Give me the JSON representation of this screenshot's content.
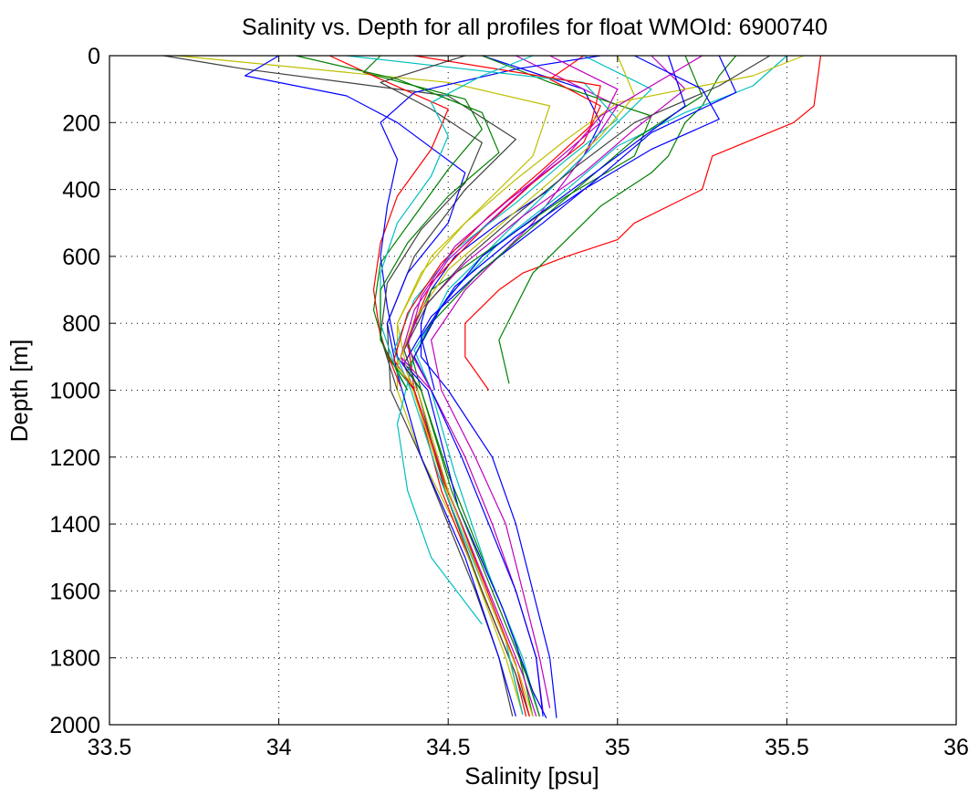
{
  "chart_data": {
    "type": "line",
    "title": "Salinity vs. Depth for all profiles for float WMOId: 6900740",
    "xlabel": "Salinity [psu]",
    "ylabel": "Depth [m]",
    "xlim": [
      33.5,
      36
    ],
    "ylim": [
      0,
      2000
    ],
    "y_reversed": true,
    "grid": true,
    "x_ticks": [
      "33.5",
      "34",
      "34.5",
      "35",
      "35.5",
      "36"
    ],
    "y_ticks": [
      "0",
      "200",
      "400",
      "600",
      "800",
      "1000",
      "1200",
      "1400",
      "1600",
      "1800",
      "2000"
    ],
    "colors": [
      "#0000ff",
      "#008000",
      "#ff0000",
      "#00bfbf",
      "#bf00bf",
      "#bfbf00",
      "#404040"
    ],
    "series": [
      {
        "color": "#ff0000",
        "depth": [
          0,
          150,
          200,
          300,
          400,
          500,
          550,
          600,
          650,
          700,
          800,
          900,
          1000
        ],
        "salinity": [
          35.6,
          35.58,
          35.52,
          35.28,
          35.25,
          35.05,
          35.0,
          34.85,
          34.72,
          34.65,
          34.55,
          34.55,
          34.62
        ]
      },
      {
        "color": "#008000",
        "depth": [
          0,
          60,
          150,
          200,
          300,
          350,
          450,
          550,
          650,
          750,
          850,
          980
        ],
        "salinity": [
          35.35,
          35.3,
          35.25,
          35.2,
          35.15,
          35.1,
          34.95,
          34.85,
          34.75,
          34.7,
          34.65,
          34.68
        ]
      },
      {
        "color": "#0000ff",
        "depth": [
          0,
          100,
          200,
          300,
          400,
          500,
          600,
          700,
          800,
          900,
          1000,
          1200,
          1400,
          1600,
          1800,
          1980
        ],
        "salinity": [
          34.6,
          34.9,
          34.95,
          34.9,
          34.8,
          34.65,
          34.52,
          34.45,
          34.42,
          34.42,
          34.5,
          34.63,
          34.7,
          34.75,
          34.8,
          34.82
        ]
      },
      {
        "color": "#bf00bf",
        "depth": [
          0,
          150,
          300,
          500,
          700,
          850,
          1000,
          1200,
          1400,
          1600,
          1800,
          1950
        ],
        "salinity": [
          34.7,
          35.0,
          34.9,
          34.75,
          34.55,
          34.45,
          34.48,
          34.58,
          34.67,
          34.72,
          34.77,
          34.8
        ]
      },
      {
        "color": "#bfbf00",
        "depth": [
          0,
          80,
          150,
          300,
          450,
          600,
          800,
          1000,
          1200,
          1400,
          1600,
          1800,
          1970
        ],
        "salinity": [
          33.7,
          34.5,
          34.8,
          34.75,
          34.6,
          34.45,
          34.35,
          34.35,
          34.42,
          34.52,
          34.6,
          34.68,
          34.72
        ]
      },
      {
        "color": "#404040",
        "depth": [
          0,
          40,
          120,
          250,
          400,
          600,
          800,
          1000,
          1200,
          1400,
          1600,
          1800,
          1975
        ],
        "salinity": [
          33.66,
          33.9,
          34.5,
          34.7,
          34.55,
          34.4,
          34.32,
          34.33,
          34.42,
          34.5,
          34.58,
          34.65,
          34.69
        ]
      },
      {
        "color": "#00bfbf",
        "depth": [
          0,
          100,
          200,
          350,
          500,
          700,
          900,
          1100,
          1300,
          1500,
          1700
        ],
        "salinity": [
          34.9,
          35.1,
          35.0,
          34.85,
          34.7,
          34.5,
          34.4,
          34.35,
          34.38,
          34.45,
          34.6
        ]
      },
      {
        "color": "#0000ff",
        "depth": [
          0,
          60,
          120,
          200,
          350,
          500,
          650,
          800,
          950,
          1200,
          1500,
          1800,
          1975
        ],
        "salinity": [
          34.0,
          33.9,
          34.2,
          34.35,
          34.55,
          34.5,
          34.38,
          34.32,
          34.35,
          34.42,
          34.55,
          34.65,
          34.7
        ]
      },
      {
        "color": "#008000",
        "depth": [
          0,
          80,
          180,
          300,
          420,
          560,
          700,
          850,
          1000,
          1250,
          1500,
          1750,
          1975
        ],
        "salinity": [
          34.6,
          34.8,
          35.1,
          35.05,
          34.85,
          34.65,
          34.45,
          34.38,
          34.42,
          34.5,
          34.6,
          34.7,
          34.75
        ]
      },
      {
        "color": "#ff0000",
        "depth": [
          0,
          70,
          150,
          260,
          380,
          520,
          680,
          850,
          1000,
          1300,
          1600,
          1850,
          1975
        ],
        "salinity": [
          34.9,
          34.8,
          34.95,
          34.9,
          34.75,
          34.6,
          34.45,
          34.38,
          34.4,
          34.48,
          34.6,
          34.7,
          34.73
        ]
      },
      {
        "color": "#00bfbf",
        "depth": [
          0,
          90,
          170,
          270,
          400,
          560,
          720,
          880,
          1000,
          1250,
          1550,
          1800,
          1975
        ],
        "salinity": [
          35.5,
          35.4,
          35.2,
          35.0,
          34.85,
          34.65,
          34.5,
          34.4,
          34.45,
          34.52,
          34.62,
          34.72,
          34.77
        ]
      },
      {
        "color": "#bf00bf",
        "depth": [
          0,
          100,
          220,
          350,
          480,
          620,
          760,
          900,
          1000,
          1300,
          1600,
          1850,
          1975
        ],
        "salinity": [
          35.1,
          35.2,
          35.05,
          34.9,
          34.72,
          34.55,
          34.42,
          34.36,
          34.4,
          34.5,
          34.62,
          34.72,
          34.76
        ]
      },
      {
        "color": "#0000ff",
        "depth": [
          0,
          110,
          230,
          360,
          500,
          640,
          780,
          920,
          1000,
          1350,
          1650,
          1900,
          1980
        ],
        "salinity": [
          35.3,
          35.35,
          35.1,
          34.95,
          34.78,
          34.6,
          34.45,
          34.37,
          34.44,
          34.53,
          34.66,
          34.75,
          34.79
        ]
      },
      {
        "color": "#bfbf00",
        "depth": [
          0,
          60,
          140,
          250,
          370,
          500,
          650,
          800,
          950,
          1200,
          1500,
          1800,
          1970
        ],
        "salinity": [
          35.55,
          35.4,
          35.0,
          34.85,
          34.7,
          34.55,
          34.42,
          34.35,
          34.38,
          34.46,
          34.56,
          34.67,
          34.72
        ]
      },
      {
        "color": "#404040",
        "depth": [
          0,
          90,
          200,
          330,
          460,
          600,
          740,
          880,
          1000,
          1300,
          1600,
          1850,
          1975
        ],
        "salinity": [
          35.45,
          35.3,
          35.05,
          34.88,
          34.72,
          34.56,
          34.44,
          34.37,
          34.41,
          34.49,
          34.6,
          34.7,
          34.74
        ]
      },
      {
        "color": "#008000",
        "depth": [
          0,
          50,
          130,
          220,
          340,
          480,
          620,
          760,
          900,
          1000
        ],
        "salinity": [
          34.3,
          34.25,
          34.55,
          34.6,
          34.5,
          34.4,
          34.3,
          34.28,
          34.32,
          34.4
        ]
      },
      {
        "color": "#ff0000",
        "depth": [
          0,
          70,
          160,
          280,
          420,
          560,
          700,
          840,
          990
        ],
        "salinity": [
          34.15,
          34.3,
          34.5,
          34.45,
          34.35,
          34.3,
          34.28,
          34.3,
          34.36
        ]
      },
      {
        "color": "#0000ff",
        "depth": [
          0,
          40,
          110,
          200,
          310,
          450,
          600,
          750,
          900,
          1000
        ],
        "salinity": [
          34.95,
          34.7,
          34.4,
          34.3,
          34.35,
          34.32,
          34.3,
          34.32,
          34.35,
          34.42
        ]
      },
      {
        "color": "#bf00bf",
        "depth": [
          0,
          100,
          200,
          330,
          470,
          610,
          760,
          900,
          1000,
          1200,
          1400,
          1600,
          1800,
          1960
        ],
        "salinity": [
          34.8,
          35.0,
          34.95,
          34.8,
          34.65,
          34.5,
          34.4,
          34.36,
          34.45,
          34.55,
          34.63,
          34.7,
          34.76,
          34.78
        ]
      },
      {
        "color": "#00bfbf",
        "depth": [
          0,
          80,
          190,
          310,
          440,
          580,
          730,
          880,
          1000,
          1250,
          1500,
          1750,
          1970
        ],
        "salinity": [
          34.2,
          34.9,
          35.0,
          34.85,
          34.7,
          34.52,
          34.4,
          34.34,
          34.39,
          34.47,
          34.57,
          34.67,
          34.72
        ]
      },
      {
        "color": "#008000",
        "depth": [
          0,
          120,
          250,
          380,
          520,
          660,
          800,
          940,
          1000,
          1300,
          1600,
          1850,
          1975
        ],
        "salinity": [
          35.2,
          35.25,
          35.05,
          34.9,
          34.74,
          34.58,
          34.45,
          34.38,
          34.42,
          34.51,
          34.63,
          34.73,
          34.77
        ]
      },
      {
        "color": "#ff0000",
        "depth": [
          0,
          90,
          210,
          340,
          480,
          620,
          770,
          910,
          1000,
          1280,
          1560,
          1820,
          1975
        ],
        "salinity": [
          34.4,
          34.95,
          34.92,
          34.78,
          34.62,
          34.48,
          34.38,
          34.34,
          34.4,
          34.49,
          34.6,
          34.7,
          34.74
        ]
      },
      {
        "color": "#0000ff",
        "depth": [
          0,
          150,
          300,
          450,
          600,
          750,
          900,
          1000,
          1200,
          1400,
          1600,
          1800,
          1975
        ],
        "salinity": [
          35.15,
          35.2,
          35.0,
          34.8,
          34.6,
          34.48,
          34.4,
          34.45,
          34.54,
          34.62,
          34.7,
          34.76,
          34.78
        ]
      },
      {
        "color": "#404040",
        "depth": [
          0,
          80,
          160,
          260,
          380,
          520,
          680,
          840,
          1000
        ],
        "salinity": [
          34.55,
          34.3,
          34.45,
          34.6,
          34.55,
          34.42,
          34.32,
          34.3,
          34.35
        ]
      },
      {
        "color": "#bfbf00",
        "depth": [
          0,
          120,
          240,
          360,
          500,
          640,
          790,
          930,
          1000,
          1300,
          1600,
          1850,
          1975
        ],
        "salinity": [
          35.0,
          35.05,
          34.95,
          34.82,
          34.66,
          34.5,
          34.4,
          34.35,
          34.41,
          34.5,
          34.61,
          34.71,
          34.75
        ]
      },
      {
        "color": "#00bfbf",
        "depth": [
          0,
          60,
          140,
          240,
          360,
          500,
          650,
          800,
          950,
          1000
        ],
        "salinity": [
          34.75,
          34.6,
          34.45,
          34.5,
          34.45,
          34.35,
          34.3,
          34.3,
          34.35,
          34.38
        ]
      },
      {
        "color": "#bf00bf",
        "depth": [
          0,
          90,
          180,
          300,
          430,
          570,
          720,
          870,
          1000
        ],
        "salinity": [
          35.25,
          35.1,
          34.95,
          34.85,
          34.68,
          34.52,
          34.42,
          34.38,
          34.45
        ]
      },
      {
        "color": "#008000",
        "depth": [
          0,
          70,
          170,
          290,
          420,
          560,
          700,
          850,
          1000
        ],
        "salinity": [
          34.05,
          34.35,
          34.6,
          34.65,
          34.5,
          34.38,
          34.3,
          34.3,
          34.38
        ]
      },
      {
        "color": "#0000ff",
        "depth": [
          0,
          100,
          190,
          280,
          400,
          540,
          690,
          840,
          1000
        ],
        "salinity": [
          35.05,
          35.25,
          35.3,
          35.1,
          34.9,
          34.7,
          34.52,
          34.42,
          34.46
        ]
      }
    ]
  }
}
